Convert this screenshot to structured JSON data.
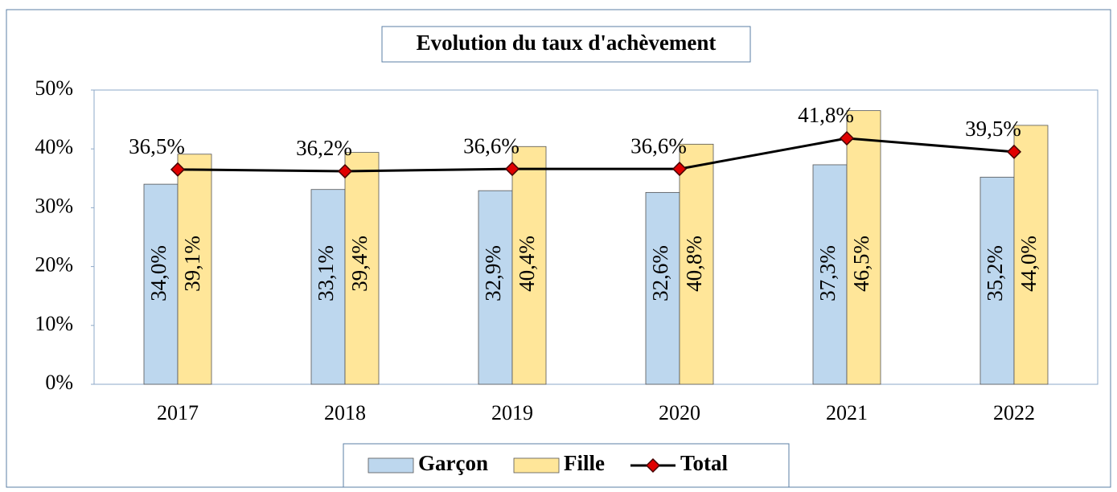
{
  "chart_data": {
    "type": "bar",
    "title": "Evolution du taux d'achèvement",
    "categories": [
      "2017",
      "2018",
      "2019",
      "2020",
      "2021",
      "2022"
    ],
    "series": [
      {
        "name": "Garçon",
        "color": "#bdd7ee",
        "values": [
          34.0,
          33.1,
          32.9,
          32.6,
          37.3,
          35.2
        ],
        "value_labels": [
          "34,0%",
          "33,1%",
          "32,9%",
          "32,6%",
          "37,3%",
          "35,2%"
        ]
      },
      {
        "name": "Fille",
        "color": "#ffe699",
        "values": [
          39.1,
          39.4,
          40.4,
          40.8,
          46.5,
          44.0
        ],
        "value_labels": [
          "39,1%",
          "39,4%",
          "40,4%",
          "40,8%",
          "46,5%",
          "44,0%"
        ]
      },
      {
        "name": "Total",
        "type": "line",
        "color": "#000000",
        "marker_color": "#e00000",
        "values": [
          36.5,
          36.2,
          36.6,
          36.6,
          41.8,
          39.5
        ],
        "value_labels": [
          "36,5%",
          "36,2%",
          "36,6%",
          "36,6%",
          "41,8%",
          "39,5%"
        ]
      }
    ],
    "ylim": [
      0,
      50
    ],
    "yticks": [
      {
        "value": 0,
        "label": "0%"
      },
      {
        "value": 10,
        "label": "10%"
      },
      {
        "value": 20,
        "label": "20%"
      },
      {
        "value": 30,
        "label": "30%"
      },
      {
        "value": 40,
        "label": "40%"
      },
      {
        "value": 50,
        "label": "50%"
      }
    ],
    "legend": "bottom",
    "grid": false
  }
}
